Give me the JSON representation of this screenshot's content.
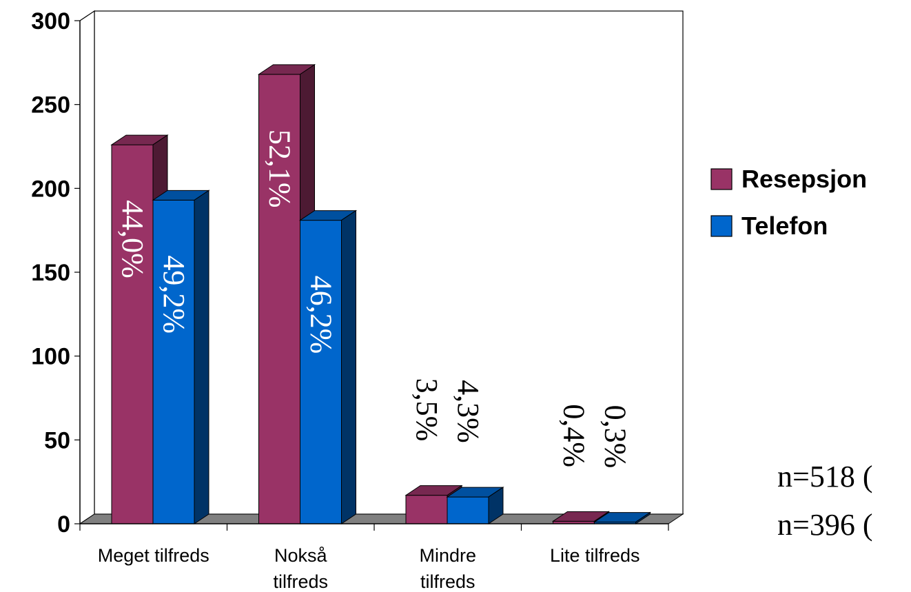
{
  "chart_data": {
    "type": "bar",
    "title": "",
    "xlabel": "",
    "ylabel": "",
    "ylim": [
      0,
      300
    ],
    "yticks": [
      "0",
      "50",
      "100",
      "150",
      "200",
      "250",
      "300"
    ],
    "categories": [
      [
        "Meget tilfreds"
      ],
      [
        "Nokså",
        "tilfreds"
      ],
      [
        "Mindre",
        "tilfreds"
      ],
      [
        "Lite tilfreds"
      ]
    ],
    "series": [
      {
        "name": "Resepsjon",
        "color": "#993366",
        "values": [
          226,
          268,
          17,
          1.5
        ],
        "labels": [
          "44,0%",
          "52,1%",
          "3,5%",
          "0,4%"
        ]
      },
      {
        "name": "Telefon",
        "color": "#0066CC",
        "values": [
          193,
          181,
          16,
          1.0
        ],
        "labels": [
          "49,2%",
          "46,2%",
          "4,3%",
          "0,3%"
        ]
      }
    ],
    "grid": true,
    "legend": "right",
    "notes": [
      "n=518 (",
      "n=396 ("
    ]
  }
}
